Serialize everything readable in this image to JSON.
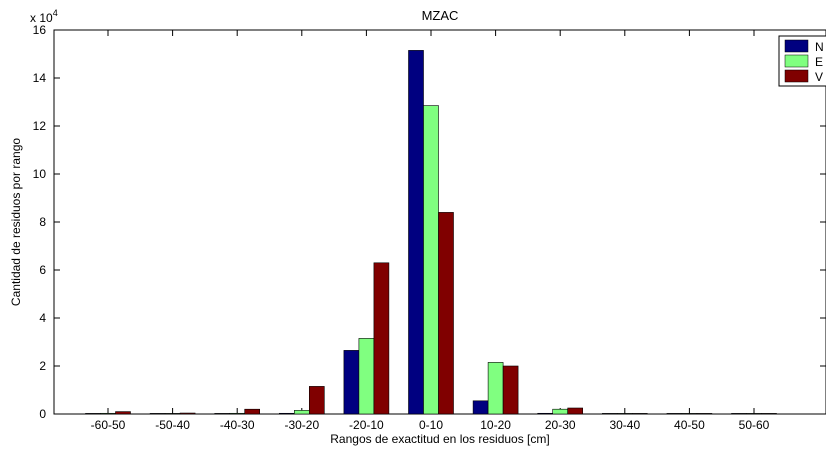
{
  "chart_data": {
    "type": "bar",
    "title": "MZAC",
    "xlabel": "Rangos de exactitud en los residuos [cm]",
    "ylabel": "Cantidad de residuos por rango",
    "y_exponent_label": "x 10",
    "y_exponent_power": "4",
    "ylim": [
      0,
      16
    ],
    "yticks": [
      "0",
      "2",
      "4",
      "6",
      "8",
      "10",
      "12",
      "14",
      "16"
    ],
    "grid": false,
    "legend_position": "top-right",
    "categories": [
      "-60-50",
      "-50-40",
      "-40-30",
      "-30-20",
      "-20-10",
      "0-10",
      "10-20",
      "20-30",
      "30-40",
      "40-50",
      "50-60"
    ],
    "series": [
      {
        "name": "N",
        "color": "#000080",
        "values": [
          0.02,
          0.01,
          0.02,
          0.03,
          2.65,
          15.15,
          0.55,
          0.03,
          0.01,
          0.01,
          0.0
        ]
      },
      {
        "name": "E",
        "color": "#80ff80",
        "values": [
          0.03,
          0.01,
          0.03,
          0.15,
          3.15,
          12.85,
          2.15,
          0.2,
          0.01,
          0.01,
          0.0
        ]
      },
      {
        "name": "V",
        "color": "#800000",
        "values": [
          0.1,
          0.04,
          0.2,
          1.15,
          6.3,
          8.4,
          2.0,
          0.25,
          0.01,
          0.0,
          0.01
        ]
      }
    ]
  }
}
